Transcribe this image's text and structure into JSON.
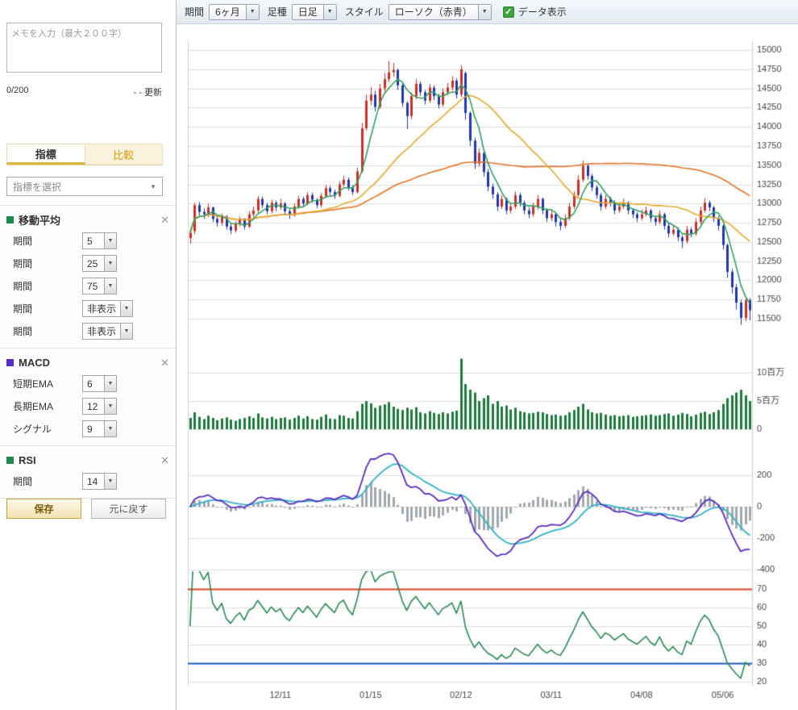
{
  "icons": {
    "close": "✕",
    "chevron_down": "▼",
    "check": "✓"
  },
  "toolbar": {
    "period_label": "期間",
    "period_value": "6ヶ月",
    "bar_type_label": "足種",
    "bar_type_value": "日足",
    "style_label": "スタイル",
    "style_value": "ローソク（赤青）",
    "data_display_label": "データ表示",
    "data_display_checked": true
  },
  "sidebar": {
    "memo": {
      "placeholder": "メモを入力（最大２００字）",
      "counter": "0/200",
      "update_label": "- - 更新"
    },
    "tabs": {
      "indicator": "指標",
      "compare": "比較"
    },
    "indicator_select_placeholder": "指標を選択",
    "indicators": {
      "ma": {
        "title": "移動平均",
        "color": "#1e8a4a",
        "rows": [
          {
            "label": "期間",
            "value": "5"
          },
          {
            "label": "期間",
            "value": "25"
          },
          {
            "label": "期間",
            "value": "75"
          },
          {
            "label": "期間",
            "value": "非表示"
          },
          {
            "label": "期間",
            "value": "非表示"
          }
        ]
      },
      "macd": {
        "title": "MACD",
        "color": "#5a2ccc",
        "rows": [
          {
            "label": "短期EMA",
            "value": "6"
          },
          {
            "label": "長期EMA",
            "value": "12"
          },
          {
            "label": "シグナル",
            "value": "9"
          }
        ]
      },
      "rsi": {
        "title": "RSI",
        "color": "#1e8a4a",
        "rows": [
          {
            "label": "期間",
            "value": "14"
          }
        ]
      }
    },
    "buttons": {
      "save": "保存",
      "reset": "元に戻す"
    }
  },
  "chart_data": {
    "type": "candlestick",
    "panels": [
      "price",
      "volume",
      "macd",
      "rsi"
    ],
    "price_axis": {
      "min": 11500,
      "max": 15000,
      "step": 250,
      "tick_labels": [
        "15000",
        "14750",
        "14500",
        "14250",
        "14000",
        "13750",
        "13500",
        "13250",
        "13000",
        "12750",
        "12500",
        "12250",
        "12000",
        "11750",
        "11500"
      ]
    },
    "volume_axis": {
      "tick_values_millions": [
        10,
        5,
        0
      ],
      "tick_labels": [
        "10百万",
        "5百万",
        "0"
      ]
    },
    "macd_axis": {
      "tick_values": [
        200,
        0,
        -200,
        -400
      ]
    },
    "rsi_axis": {
      "tick_values": [
        70,
        60,
        50,
        40,
        30,
        20
      ],
      "overbought_line": {
        "value": 70,
        "color": "#e04018"
      },
      "oversold_line": {
        "value": 30,
        "color": "#1659c2"
      }
    },
    "x_ticks": [
      {
        "index": 20,
        "label": "12/11"
      },
      {
        "index": 40,
        "label": "01/15"
      },
      {
        "index": 60,
        "label": "02/12"
      },
      {
        "index": 80,
        "label": "03/11"
      },
      {
        "index": 100,
        "label": "04/08"
      },
      {
        "index": 118,
        "label": "05/06"
      }
    ],
    "indicator_settings": {
      "sma_periods": [
        5,
        25,
        75
      ],
      "macd": {
        "short_ema": 6,
        "long_ema": 12,
        "signal": 9
      },
      "rsi_period": 14
    },
    "colors": {
      "up_candle": "#cc2f26",
      "down_candle": "#2137b0",
      "sma5": "#33a05f",
      "sma25": "#e2aa2e",
      "sma75": "#e2762a",
      "volume": "#1f7a3d",
      "macd_line": "#5b2fbe",
      "macd_signal": "#2fb3c6",
      "macd_hist": "#a3a8ae",
      "rsi_line": "#2a8a50",
      "grid": "#dddddd",
      "axis_line": "#cfcfcf",
      "axis_text": "#444444"
    },
    "candles": [
      [
        12550,
        12680,
        12480,
        12620,
        2.0
      ],
      [
        12640,
        13010,
        12600,
        12980,
        3.0
      ],
      [
        12980,
        13020,
        12840,
        12890,
        2.2
      ],
      [
        12890,
        12940,
        12800,
        12860,
        1.8
      ],
      [
        12860,
        13000,
        12820,
        12950,
        2.4
      ],
      [
        12950,
        12960,
        12760,
        12800,
        2.0
      ],
      [
        12800,
        12850,
        12700,
        12750,
        1.6
      ],
      [
        12750,
        12870,
        12710,
        12830,
        1.9
      ],
      [
        12830,
        12850,
        12660,
        12700,
        2.1
      ],
      [
        12700,
        12740,
        12600,
        12650,
        1.7
      ],
      [
        12650,
        12770,
        12620,
        12730,
        1.5
      ],
      [
        12730,
        12830,
        12700,
        12790,
        1.8
      ],
      [
        12790,
        12810,
        12660,
        12700,
        2.0
      ],
      [
        12700,
        12900,
        12680,
        12860,
        2.3
      ],
      [
        12860,
        12960,
        12820,
        12910,
        2.0
      ],
      [
        12910,
        13100,
        12880,
        13060,
        2.8
      ],
      [
        13060,
        13090,
        12940,
        12980,
        2.1
      ],
      [
        12980,
        13010,
        12860,
        12900,
        1.9
      ],
      [
        12900,
        13050,
        12870,
        13010,
        2.2
      ],
      [
        13010,
        13040,
        12900,
        12950,
        1.8
      ],
      [
        12950,
        13060,
        12920,
        13000,
        2.0
      ],
      [
        13000,
        13020,
        12860,
        12900,
        2.1
      ],
      [
        12900,
        12930,
        12800,
        12850,
        1.7
      ],
      [
        12850,
        13000,
        12830,
        12960,
        2.0
      ],
      [
        12960,
        13100,
        12930,
        13060,
        2.4
      ],
      [
        13060,
        13090,
        12960,
        13000,
        1.9
      ],
      [
        13000,
        13150,
        12980,
        13110,
        2.3
      ],
      [
        13110,
        13140,
        13010,
        13050,
        1.8
      ],
      [
        13050,
        13070,
        12940,
        12980,
        1.7
      ],
      [
        12980,
        13140,
        12950,
        13100,
        2.2
      ],
      [
        13100,
        13240,
        13070,
        13200,
        2.6
      ],
      [
        13200,
        13230,
        13110,
        13150,
        1.9
      ],
      [
        13150,
        13180,
        13060,
        13100,
        1.8
      ],
      [
        13100,
        13290,
        13080,
        13250,
        2.5
      ],
      [
        13250,
        13360,
        13220,
        13310,
        2.4
      ],
      [
        13310,
        13340,
        13170,
        13210,
        2.0
      ],
      [
        13210,
        13240,
        13110,
        13150,
        1.9
      ],
      [
        13150,
        13470,
        13130,
        13420,
        3.2
      ],
      [
        13420,
        14050,
        13400,
        13980,
        4.5
      ],
      [
        13980,
        14420,
        13950,
        14340,
        5.0
      ],
      [
        14340,
        14520,
        14280,
        14420,
        4.6
      ],
      [
        14420,
        14470,
        14200,
        14260,
        3.8
      ],
      [
        14260,
        14560,
        14230,
        14500,
        4.2
      ],
      [
        14500,
        14700,
        14460,
        14620,
        4.4
      ],
      [
        14620,
        14860,
        14580,
        14710,
        4.8
      ],
      [
        14710,
        14830,
        14650,
        14740,
        4.0
      ],
      [
        14740,
        14760,
        14480,
        14540,
        3.6
      ],
      [
        14540,
        14570,
        14260,
        14310,
        3.4
      ],
      [
        14310,
        14330,
        13970,
        14140,
        3.8
      ],
      [
        14140,
        14450,
        14100,
        14400,
        3.5
      ],
      [
        14400,
        14620,
        14360,
        14560,
        3.9
      ],
      [
        14560,
        14590,
        14400,
        14450,
        3.0
      ],
      [
        14450,
        14480,
        14290,
        14340,
        2.8
      ],
      [
        14340,
        14560,
        14310,
        14510,
        3.2
      ],
      [
        14510,
        14540,
        14350,
        14400,
        2.9
      ],
      [
        14400,
        14430,
        14240,
        14290,
        2.7
      ],
      [
        14290,
        14500,
        14260,
        14450,
        3.0
      ],
      [
        14450,
        14570,
        14410,
        14510,
        2.8
      ],
      [
        14510,
        14660,
        14470,
        14600,
        3.1
      ],
      [
        14600,
        14630,
        14370,
        14420,
        3.3
      ],
      [
        14420,
        14800,
        14390,
        14750,
        12.5
      ],
      [
        14700,
        14720,
        14090,
        14180,
        8.0
      ],
      [
        14180,
        14200,
        13750,
        13820,
        7.0
      ],
      [
        13820,
        13860,
        13450,
        13520,
        6.5
      ],
      [
        13520,
        13720,
        13480,
        13660,
        5.0
      ],
      [
        13660,
        13690,
        13350,
        13410,
        5.5
      ],
      [
        13410,
        13450,
        13160,
        13220,
        6.0
      ],
      [
        13220,
        13260,
        13060,
        13120,
        4.5
      ],
      [
        13120,
        13150,
        12900,
        12960,
        5.0
      ],
      [
        12960,
        13110,
        12930,
        13060,
        4.0
      ],
      [
        13060,
        13080,
        12860,
        12910,
        4.2
      ],
      [
        12910,
        13010,
        12870,
        12960,
        3.5
      ],
      [
        12960,
        13160,
        12930,
        13110,
        3.8
      ],
      [
        13110,
        13140,
        12960,
        13010,
        3.2
      ],
      [
        13010,
        13040,
        12860,
        12910,
        3.0
      ],
      [
        12910,
        12950,
        12810,
        12860,
        2.8
      ],
      [
        12860,
        13010,
        12830,
        12960,
        2.9
      ],
      [
        12960,
        13110,
        12920,
        13060,
        3.1
      ],
      [
        13060,
        13080,
        12860,
        12910,
        3.0
      ],
      [
        12910,
        12940,
        12760,
        12810,
        2.7
      ],
      [
        12810,
        12920,
        12770,
        12860,
        2.5
      ],
      [
        12860,
        12890,
        12700,
        12760,
        2.6
      ],
      [
        12760,
        12800,
        12650,
        12710,
        2.4
      ],
      [
        12710,
        12860,
        12680,
        12810,
        2.5
      ],
      [
        12810,
        13010,
        12780,
        12960,
        3.0
      ],
      [
        12960,
        13160,
        12930,
        13110,
        3.4
      ],
      [
        13110,
        13370,
        13080,
        13310,
        4.0
      ],
      [
        13310,
        13560,
        13280,
        13490,
        4.5
      ],
      [
        13490,
        13520,
        13310,
        13360,
        3.5
      ],
      [
        13360,
        13390,
        13160,
        13210,
        3.0
      ],
      [
        13210,
        13240,
        13060,
        13110,
        2.8
      ],
      [
        13110,
        13140,
        12910,
        12960,
        2.9
      ],
      [
        12960,
        13110,
        12930,
        13060,
        2.6
      ],
      [
        13060,
        13090,
        12960,
        13010,
        2.4
      ],
      [
        13010,
        13040,
        12860,
        12910,
        2.5
      ],
      [
        12910,
        13010,
        12880,
        12960,
        2.3
      ],
      [
        12960,
        13060,
        12930,
        13010,
        2.4
      ],
      [
        13010,
        13030,
        12860,
        12910,
        2.5
      ],
      [
        12910,
        12940,
        12810,
        12860,
        2.2
      ],
      [
        12860,
        12890,
        12760,
        12810,
        2.3
      ],
      [
        12810,
        12920,
        12780,
        12860,
        2.4
      ],
      [
        12860,
        12960,
        12830,
        12910,
        2.5
      ],
      [
        12910,
        12930,
        12760,
        12810,
        2.6
      ],
      [
        12810,
        12840,
        12710,
        12760,
        2.4
      ],
      [
        12760,
        12910,
        12730,
        12860,
        2.5
      ],
      [
        12860,
        12880,
        12660,
        12710,
        2.7
      ],
      [
        12710,
        12740,
        12560,
        12610,
        2.8
      ],
      [
        12610,
        12710,
        12580,
        12660,
        2.4
      ],
      [
        12660,
        12690,
        12510,
        12560,
        2.6
      ],
      [
        12560,
        12590,
        12420,
        12510,
        2.9
      ],
      [
        12510,
        12710,
        12480,
        12660,
        2.7
      ],
      [
        12660,
        12690,
        12560,
        12610,
        2.3
      ],
      [
        12610,
        12810,
        12580,
        12760,
        2.6
      ],
      [
        12760,
        12960,
        12730,
        12910,
        2.9
      ],
      [
        12910,
        13070,
        12880,
        13010,
        3.1
      ],
      [
        13010,
        13040,
        12900,
        12950,
        2.7
      ],
      [
        12950,
        12970,
        12760,
        12810,
        3.0
      ],
      [
        12810,
        12840,
        12650,
        12710,
        3.4
      ],
      [
        12710,
        12730,
        12400,
        12460,
        4.5
      ],
      [
        12460,
        12480,
        12030,
        12110,
        5.5
      ],
      [
        12110,
        12150,
        11830,
        11910,
        6.0
      ],
      [
        11910,
        11950,
        11620,
        11710,
        6.5
      ],
      [
        11710,
        11750,
        11420,
        11510,
        7.0
      ],
      [
        11510,
        11790,
        11470,
        11740,
        6.0
      ],
      [
        11740,
        11770,
        11480,
        11610,
        5.0
      ]
    ]
  }
}
